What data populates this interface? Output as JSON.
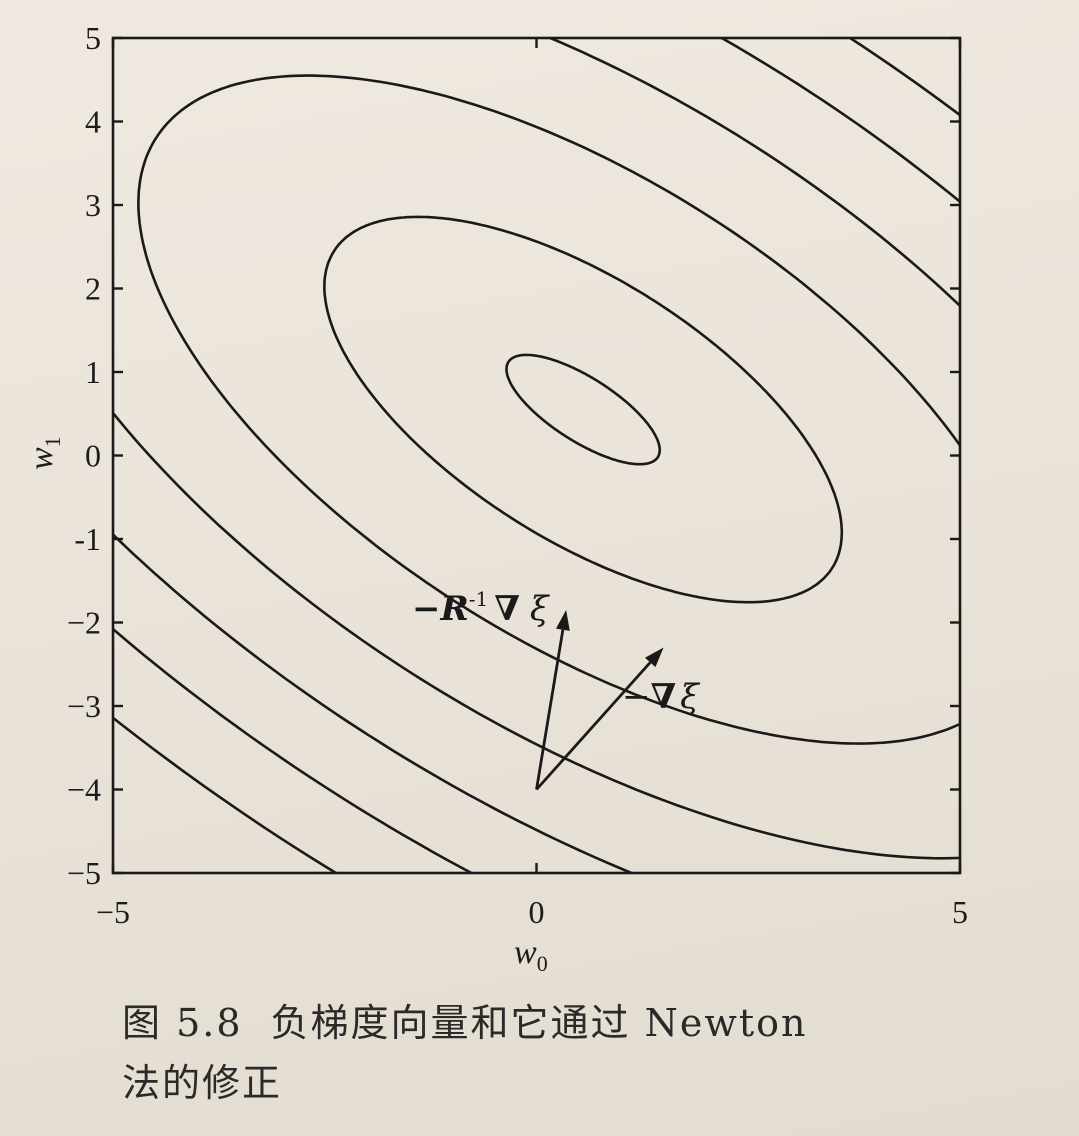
{
  "chart_data": {
    "type": "contour",
    "xlabel": "w",
    "xlabel_sub": "0",
    "ylabel": "w",
    "ylabel_sub": "1",
    "xlim": [
      -5,
      5
    ],
    "ylim": [
      -5,
      5
    ],
    "x_ticks": [
      "−5",
      "0",
      "5"
    ],
    "x_tick_values": [
      -5,
      0,
      5
    ],
    "y_ticks": [
      "5",
      "4",
      "3",
      "2",
      "1",
      "0",
      "-1",
      "−2",
      "−3",
      "−4",
      "−5"
    ],
    "y_tick_values": [
      5,
      4,
      3,
      2,
      1,
      0,
      -1,
      -2,
      -3,
      -4,
      -5
    ],
    "grid": false,
    "contours": {
      "center": [
        0.55,
        0.55
      ],
      "axis_angle_deg": -33,
      "shape": "ellipses elongated along a direction falling from upper-left to lower-right",
      "levels_count": 7
    },
    "arrows": [
      {
        "name": "-R^-1 grad xi",
        "start": [
          0,
          -4
        ],
        "end": [
          0.35,
          -1.85
        ]
      },
      {
        "name": "-grad xi",
        "start": [
          0,
          -4
        ],
        "end": [
          1.5,
          -2.3
        ]
      }
    ],
    "annotations": {
      "newton": {
        "minus": "−",
        "R": "R",
        "sup": "-1",
        "nabla": "∇",
        "xi": "ξ"
      },
      "gradient": {
        "minus": "−",
        "nabla": "∇",
        "xi": "ξ"
      }
    }
  },
  "caption": {
    "number": "图 5.8",
    "line1": "负梯度向量和它通过 Newton",
    "line2": "法的修正"
  }
}
